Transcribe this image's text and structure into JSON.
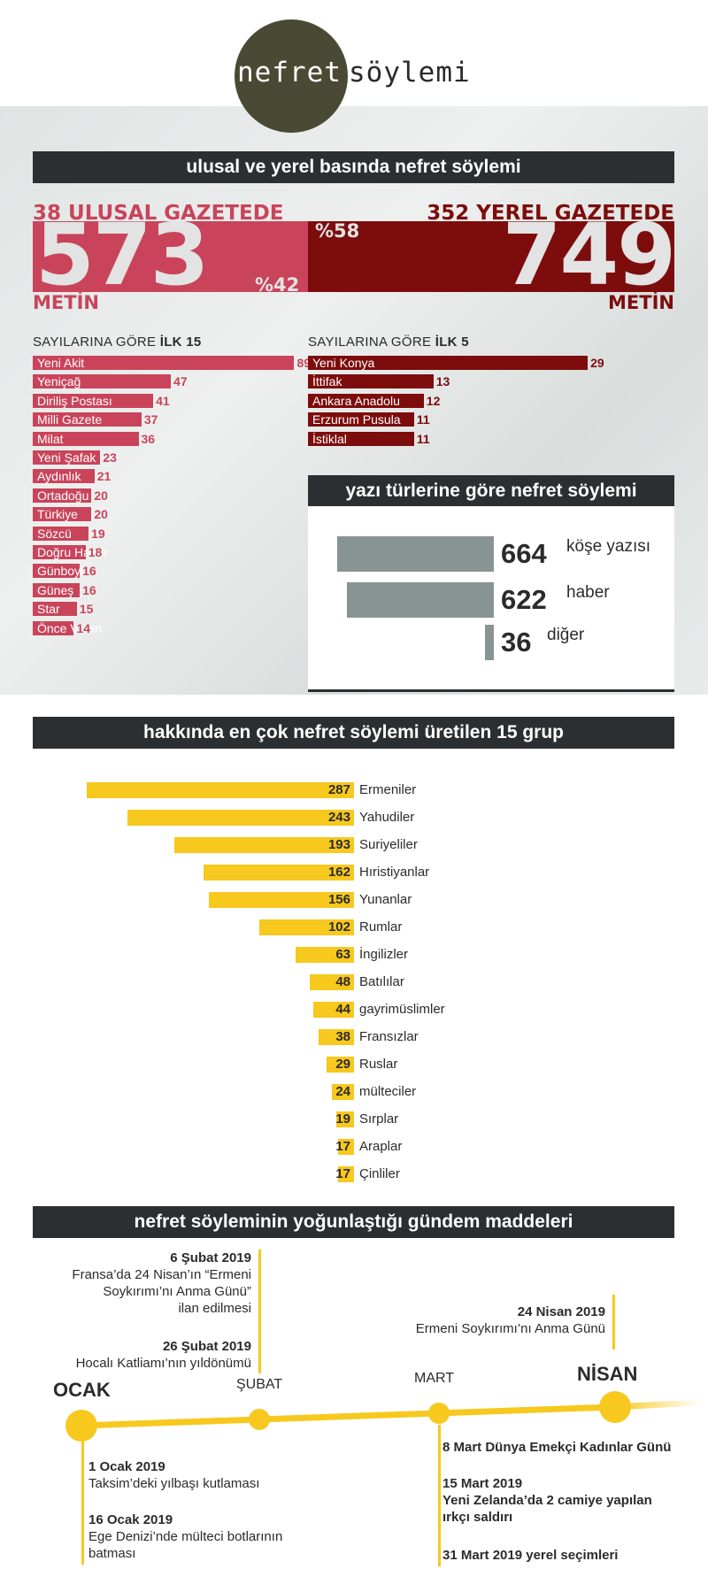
{
  "header": {
    "logo_left": "nefret",
    "logo_right": "söylemi"
  },
  "sections": {
    "press": "ulusal ve yerel basında nefret söylemi",
    "types": "yazı türlerine göre nefret söylemi",
    "groups": "hakkında en çok nefret söylemi üretilen 15 grup",
    "agenda": "nefret söyleminin yoğunlaştığı gündem maddeleri"
  },
  "national": {
    "caption": "38 ULUSAL GAZETEDE",
    "value": "573",
    "unit": "METİN",
    "percent": "%42",
    "list_heading_pre": "SAYILARINA GÖRE ",
    "list_heading_bold": "İLK 15",
    "color": "#c9445a"
  },
  "local": {
    "caption": "352 YEREL GAZETEDE",
    "value": "749",
    "unit": "METİN",
    "percent": "%58",
    "list_heading_pre": "SAYILARINA GÖRE ",
    "list_heading_bold": "İLK 5",
    "color": "#7d0c0c"
  },
  "chart_data": [
    {
      "type": "bar",
      "title": "SAYILARINA GÖRE İLK 15",
      "categories": [
        "Yeni Akit",
        "Yeniçağ",
        "Diriliş Postası",
        "Milli Gazete",
        "Milat",
        "Yeni Şafak",
        "Aydınlık",
        "Ortadoğu",
        "Türkiye",
        "Sözcü",
        "Doğru Haber",
        "Günboyu",
        "Güneş",
        "Star",
        "Önce Vatan"
      ],
      "values": [
        89,
        47,
        41,
        37,
        36,
        23,
        21,
        20,
        20,
        19,
        18,
        16,
        16,
        15,
        14
      ]
    },
    {
      "type": "bar",
      "title": "SAYILARINA GÖRE İLK 5",
      "categories": [
        "Yeni Konya",
        "İttifak",
        "Ankara Anadolu",
        "Erzurum Pusula",
        "İstiklal"
      ],
      "values": [
        29,
        13,
        12,
        11,
        11
      ]
    },
    {
      "type": "bar",
      "title": "yazı türlerine göre nefret söylemi",
      "categories": [
        "köşe yazısı",
        "haber",
        "diğer"
      ],
      "values": [
        664,
        622,
        36
      ]
    },
    {
      "type": "bar",
      "title": "hakkında en çok nefret söylemi üretilen 15 grup",
      "categories": [
        "Ermeniler",
        "Yahudiler",
        "Suriyeliler",
        "Hıristiyanlar",
        "Yunanlar",
        "Rumlar",
        "İngilizler",
        "Batılılar",
        "gayrimüslimler",
        "Fransızlar",
        "Ruslar",
        "mülteciler",
        "Sırplar",
        "Araplar",
        "Çinliler"
      ],
      "values": [
        287,
        243,
        193,
        162,
        156,
        102,
        63,
        48,
        44,
        38,
        29,
        24,
        19,
        17,
        17
      ]
    }
  ],
  "timeline": {
    "months": [
      "OCAK",
      "ŞUBAT",
      "MART",
      "NİSAN"
    ],
    "events_top_subat": [
      {
        "date": "6 Şubat 2019",
        "text": "Fransa’da 24 Nisan’ın “Ermeni\nSoykırımı’nı Anma Günü”\nilan edilmesi"
      },
      {
        "date": "26 Şubat 2019",
        "text": "Hocalı Katliamı’nın yıldönümü"
      }
    ],
    "events_top_nisan": [
      {
        "date": "24 Nisan 2019",
        "text": "Ermeni Soykırımı’nı Anma Günü"
      }
    ],
    "events_bottom_ocak": [
      {
        "date": "1 Ocak 2019",
        "text": "Taksim’deki yılbaşı kutlaması"
      },
      {
        "date": "16 Ocak 2019",
        "text": "Ege Denizi’nde mülteci botlarının\nbatması"
      }
    ],
    "events_bottom_mart": [
      {
        "date": "",
        "text": "8 Mart Dünya Emekçi Kadınlar Günü"
      },
      {
        "date": "15 Mart 2019",
        "text": "Yeni Zelanda’da 2 camiye yapılan\nırkçı saldırı"
      },
      {
        "date": "",
        "text": "31 Mart 2019 yerel seçimleri"
      }
    ]
  },
  "colors": {
    "dark": "#2b2f31",
    "yellow": "#f7c81e",
    "gray": "#889393"
  }
}
